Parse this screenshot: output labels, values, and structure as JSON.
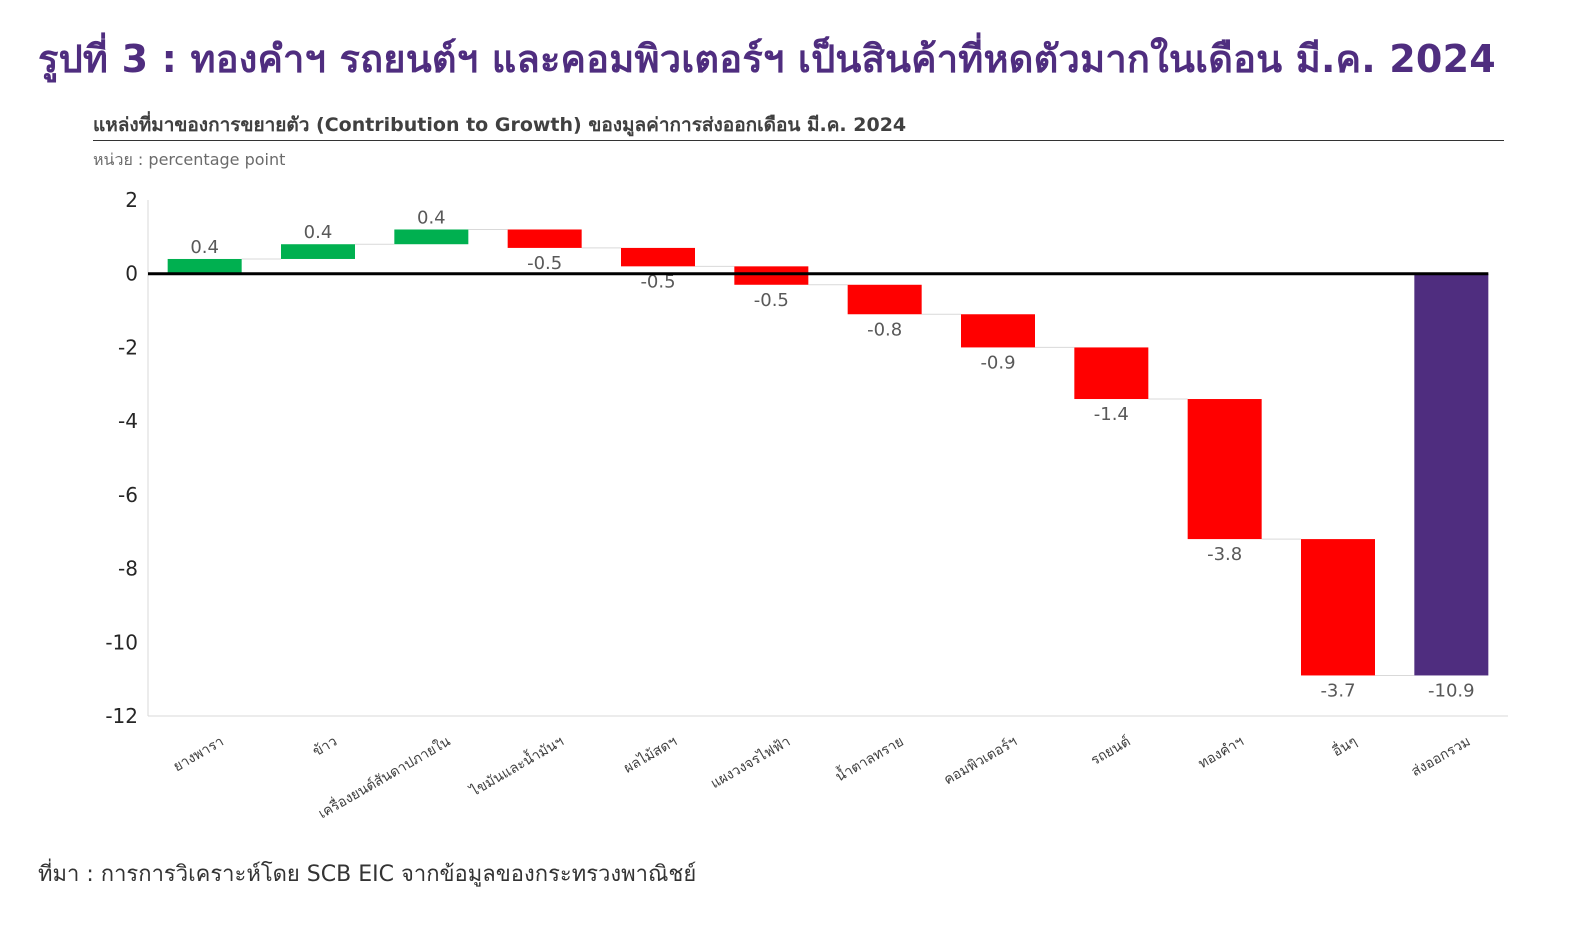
{
  "figure_title": "รูปที่ 3 : ทองคำฯ รถยนต์ฯ และคอมพิวเตอร์ฯ เป็นสินค้าที่หดตัวมากในเดือน มี.ค. 2024",
  "source": "ที่มา : การการวิเคราะห์โดย SCB EIC จากข้อมูลของกระทรวงพาณิชย์",
  "colors": {
    "increase": "#00b050",
    "decrease": "#ff0000",
    "total": "#4f2d7f",
    "title": "#4f2d7f"
  },
  "chart_data": {
    "type": "waterfall",
    "title": "แหล่งที่มาของการขยายตัว (Contribution to Growth) ของมูลค่าการส่งออกเดือน มี.ค. 2024",
    "unit": "หน่วย : percentage point",
    "ylim": [
      -12,
      2
    ],
    "yticks": [
      2,
      0,
      -2,
      -4,
      -6,
      -8,
      -10,
      -12
    ],
    "categories": [
      "ยางพารา",
      "ข้าว",
      "เครื่องยนต์สันดาปภายใน",
      "ไขมันและน้ำมันฯ",
      "ผลไม้สดฯ",
      "แผงวงจรไฟฟ้า",
      "น้ำตาลทราย",
      "คอมพิวเตอร์ฯ",
      "รถยนต์",
      "ทองคำฯ",
      "อื่นๆ",
      "ส่งออกรวม"
    ],
    "values": [
      0.4,
      0.4,
      0.4,
      -0.5,
      -0.5,
      -0.5,
      -0.8,
      -0.9,
      -1.4,
      -3.8,
      -3.7,
      -10.9
    ],
    "labels": [
      "0.4",
      "0.4",
      "0.4",
      "-0.5",
      "-0.5",
      "-0.5",
      "-0.8",
      "-0.9",
      "-1.4",
      "-3.8",
      "-3.7",
      "-10.9"
    ],
    "total_index": 11
  }
}
